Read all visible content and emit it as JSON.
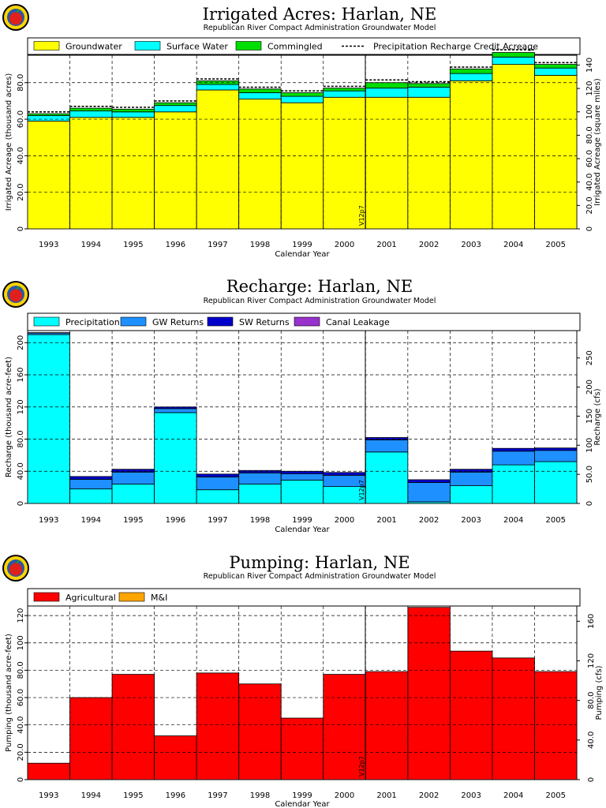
{
  "chart_data": [
    {
      "type": "bar",
      "stacked": true,
      "title": "Irrigated Acres: Harlan, NE",
      "subtitle": "Republican River Compact Administration Groundwater Model",
      "xlabel": "Calendar Year",
      "ylabel": "Irrigated Acreage (thousand acres)",
      "y2label": "Irrigated Acreage (square miles)",
      "ylim": [
        0,
        95
      ],
      "y2lim": [
        0,
        148.4
      ],
      "yticks": [
        "0",
        "20.0",
        "40.0",
        "60.0",
        "80.0"
      ],
      "y2ticks": [
        "0",
        "20.0",
        "40.0",
        "60.0",
        "80.0",
        "100",
        "120",
        "140"
      ],
      "marker_label": "V12p7",
      "categories": [
        "1993",
        "1994",
        "1995",
        "1996",
        "1997",
        "1998",
        "1999",
        "2000",
        "2001",
        "2002",
        "2003",
        "2004",
        "2005"
      ],
      "series": [
        {
          "name": "Groundwater",
          "color": "#ffff00",
          "values": [
            59,
            61,
            61,
            64,
            76,
            71,
            69,
            72,
            72,
            72,
            81,
            90,
            84
          ]
        },
        {
          "name": "Surface Water",
          "color": "#00ffff",
          "values": [
            3,
            3.5,
            3,
            3.5,
            3,
            3.5,
            3.5,
            3.5,
            5,
            5.5,
            4,
            4,
            4
          ]
        },
        {
          "name": "Commingled",
          "color": "#00dd00",
          "values": [
            1,
            1.5,
            1.5,
            1.5,
            2,
            2,
            2,
            1.5,
            3,
            2,
            2.5,
            2.5,
            2
          ]
        }
      ],
      "line_series": {
        "name": "Precipitation Recharge Credit Acreage",
        "values": [
          64,
          67,
          66.5,
          70,
          82,
          77.5,
          75.5,
          78,
          81.5,
          80.5,
          88.5,
          98,
          91
        ]
      }
    },
    {
      "type": "bar",
      "stacked": true,
      "title": "Recharge: Harlan, NE",
      "subtitle": "Republican River Compact Administration Groundwater Model",
      "xlabel": "Calendar Year",
      "ylabel": "Recharge (thousand acre-feet)",
      "y2label": "Recharge (cfs)",
      "ylim": [
        0,
        215
      ],
      "y2lim": [
        0,
        297
      ],
      "yticks": [
        "0",
        "40.0",
        "80.0",
        "120",
        "160",
        "200"
      ],
      "y2ticks": [
        "0",
        "50.0",
        "100",
        "150",
        "200",
        "250"
      ],
      "marker_label": "V12p7",
      "categories": [
        "1993",
        "1994",
        "1995",
        "1996",
        "1997",
        "1998",
        "1999",
        "2000",
        "2001",
        "2002",
        "2003",
        "2004",
        "2005"
      ],
      "series": [
        {
          "name": "Precipitation",
          "color": "#00ffff",
          "values": [
            210,
            18,
            24,
            113,
            17,
            24,
            29,
            21,
            64,
            2,
            22,
            48,
            52
          ]
        },
        {
          "name": "GW Returns",
          "color": "#1e90ff",
          "values": [
            2,
            12,
            15,
            5,
            16,
            14,
            8,
            14,
            15,
            24,
            17,
            17,
            14
          ]
        },
        {
          "name": "SW Returns",
          "color": "#0000cd",
          "values": [
            0.5,
            3.5,
            3.5,
            2,
            3.5,
            3,
            3,
            3.5,
            3,
            3.5,
            3.5,
            3.5,
            3
          ]
        },
        {
          "name": "Canal Leakage",
          "color": "#9932cc",
          "values": [
            0,
            0,
            0,
            0,
            0,
            0,
            0,
            0,
            0,
            0,
            0,
            0,
            0
          ]
        }
      ]
    },
    {
      "type": "bar",
      "stacked": true,
      "title": "Pumping: Harlan, NE",
      "subtitle": "Republican River Compact Administration Groundwater Model",
      "xlabel": "Calendar Year",
      "ylabel": "Pumping (thousand acre-feet)",
      "y2label": "Pumping (cfs)",
      "ylim": [
        0,
        127
      ],
      "y2lim": [
        0,
        175.4
      ],
      "yticks": [
        "0",
        "20.0",
        "40.0",
        "60.0",
        "80.0",
        "100",
        "120"
      ],
      "y2ticks": [
        "0",
        "40.0",
        "80.0",
        "120",
        "160"
      ],
      "marker_label": "V12p7",
      "categories": [
        "1993",
        "1994",
        "1995",
        "1996",
        "1997",
        "1998",
        "1999",
        "2000",
        "2001",
        "2002",
        "2003",
        "2004",
        "2005"
      ],
      "series": [
        {
          "name": "Agricultural",
          "color": "#ff0000",
          "values": [
            12,
            60,
            77,
            32,
            78,
            70,
            45,
            77,
            79,
            126,
            94,
            89,
            79
          ]
        },
        {
          "name": "M&I",
          "color": "#ffa500",
          "values": [
            0,
            0,
            0,
            0,
            0,
            0,
            0,
            0,
            0,
            0,
            0,
            0,
            0
          ]
        }
      ]
    }
  ]
}
